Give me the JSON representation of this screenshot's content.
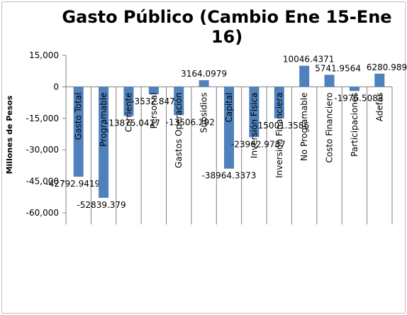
{
  "chart_data": {
    "type": "bar",
    "title_lines": [
      "Gasto Público (Cambio Ene 15-Ene",
      "16)"
    ],
    "ylabel": "Millones de Pesos",
    "xlabel": "",
    "ylim": [
      -60000,
      15000
    ],
    "yticks": [
      15000,
      0,
      -15000,
      -30000,
      -45000,
      -60000
    ],
    "ytick_labels": [
      "15,000",
      "0",
      "-15,000",
      "-30,000",
      "-45,000",
      "-60,000"
    ],
    "grid": false,
    "legend": "none",
    "bar_color": "#4f81bd",
    "categories": [
      "Gasto Total",
      "Programable",
      "Corriente",
      "Personal",
      "Gastos Operación",
      "Subsidios",
      "Capital",
      "Inversión Física",
      "Inversión Financiera",
      "No Programable",
      "Costo Financiero",
      "Participaciones",
      "Adefas"
    ],
    "values": [
      -42792.9419,
      -52839.379,
      -13875.0417,
      -3532.8475,
      -13506.292,
      3164.0979,
      -38964.3373,
      -23962.9787,
      -15001.3586,
      10046.4371,
      5741.9564,
      -1976.5083,
      6280.9891
    ],
    "data_labels": [
      "-42792.9419",
      "-52839.379",
      "-13875.0417",
      "-3532.8475",
      "-13506.292",
      "3164.0979",
      "-38964.3373",
      "-23962.9787",
      "-15001.3586",
      "10046.4371",
      "5741.9564",
      "-1976.5083",
      "6280.9891"
    ]
  }
}
